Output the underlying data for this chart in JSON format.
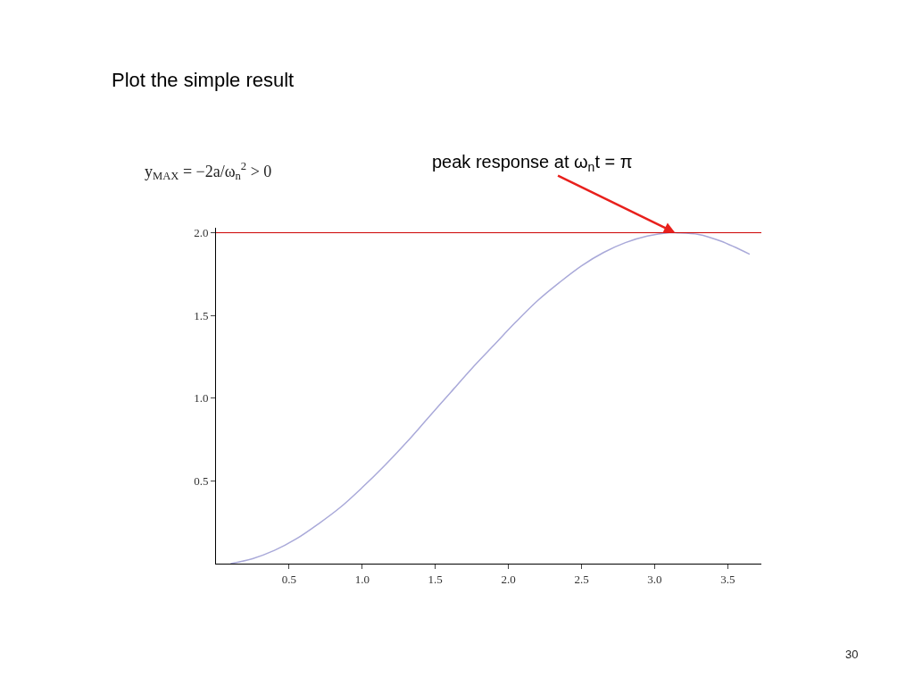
{
  "chart_data": {
    "type": "line",
    "title": "Plot the simple result",
    "x": [
      0.1,
      0.25,
      0.4,
      0.55,
      0.7,
      0.85,
      1.0,
      1.15,
      1.3,
      1.45,
      1.6,
      1.75,
      1.9,
      2.05,
      2.2,
      2.35,
      2.5,
      2.65,
      2.8,
      2.95,
      3.1,
      3.14,
      3.3,
      3.45,
      3.65
    ],
    "series": [
      {
        "color": "#a9a9d9",
        "values": [
          0.0,
          0.03,
          0.08,
          0.15,
          0.24,
          0.34,
          0.46,
          0.59,
          0.73,
          0.88,
          1.03,
          1.18,
          1.32,
          1.46,
          1.59,
          1.7,
          1.8,
          1.88,
          1.94,
          1.98,
          2.0,
          2.0,
          1.99,
          1.95,
          1.87
        ]
      }
    ],
    "xlim": [
      0,
      3.73
    ],
    "ylim": [
      0,
      2.03
    ],
    "xticks": [
      0.5,
      {
        "value": 1,
        "label": "1.0"
      },
      1.5,
      {
        "value": 2,
        "label": "2.0"
      },
      2.5,
      {
        "value": 3,
        "label": "3.0"
      },
      3.5
    ],
    "yticks": [
      0.5,
      {
        "value": 1,
        "label": "1.0"
      },
      1.5,
      {
        "value": 2,
        "label": "2.0"
      }
    ],
    "ref_lines": [
      {
        "axis": "y",
        "value": 2,
        "color": "#cc0000"
      }
    ],
    "annotations": [
      "y$_{MAX}$ = −2a/ω$_{n}$$^{2}$ > 0",
      {
        "text": "peak response at ω$_{n}$t = π",
        "x": 3.14,
        "y": 2
      },
      "30"
    ]
  }
}
